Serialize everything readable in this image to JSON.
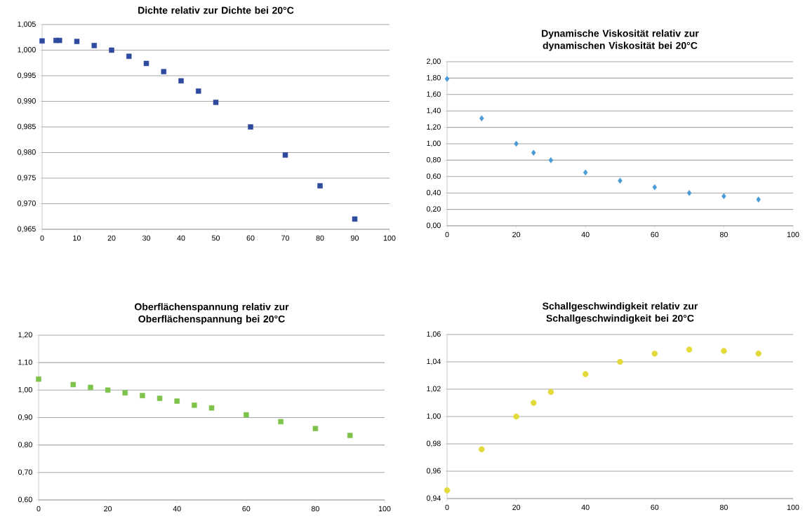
{
  "chart_data": [
    {
      "type": "scatter",
      "title": "Dichte relativ zur Dichte bei 20°C",
      "marker": "square",
      "grid": "y",
      "color": "#2e4a9e",
      "x": [
        0,
        4,
        5,
        10,
        15,
        20,
        25,
        30,
        35,
        40,
        45,
        50,
        60,
        70,
        80,
        90
      ],
      "values": [
        1.0018,
        1.0019,
        1.0019,
        1.0017,
        1.0009,
        1.0,
        0.9988,
        0.9974,
        0.9958,
        0.994,
        0.992,
        0.9898,
        0.985,
        0.9795,
        0.9735,
        0.967
      ],
      "xlim": [
        0,
        100
      ],
      "xticks": [
        0,
        10,
        20,
        30,
        40,
        50,
        60,
        70,
        80,
        90,
        100
      ],
      "ylim": [
        0.965,
        1.005
      ],
      "yticks": [
        {
          "value": 0.965,
          "label": "0,965"
        },
        {
          "value": 0.97,
          "label": "0,970"
        },
        {
          "value": 0.975,
          "label": "0,975"
        },
        {
          "value": 0.98,
          "label": "0,980"
        },
        {
          "value": 0.985,
          "label": "0,985"
        },
        {
          "value": 0.99,
          "label": "0,990"
        },
        {
          "value": 0.995,
          "label": "0,995"
        },
        {
          "value": 1.0,
          "label": "1,000"
        },
        {
          "value": 1.005,
          "label": "1,005"
        }
      ]
    },
    {
      "type": "scatter",
      "title": "Dynamische Viskosität relativ zur dynamischen Viskosität bei 20°C",
      "marker": "diamond",
      "grid": "y",
      "color": "#4a9ad6",
      "x": [
        0,
        10,
        20,
        25,
        30,
        40,
        50,
        60,
        70,
        80,
        90
      ],
      "values": [
        1.79,
        1.31,
        1.0,
        0.89,
        0.8,
        0.65,
        0.55,
        0.47,
        0.4,
        0.36,
        0.32
      ],
      "xlim": [
        0,
        100
      ],
      "xticks": [
        0,
        20,
        40,
        60,
        80,
        100
      ],
      "ylim": [
        0,
        2
      ],
      "yticks": [
        {
          "value": 0,
          "label": "0,00"
        },
        {
          "value": 0.2,
          "label": "0,20"
        },
        {
          "value": 0.4,
          "label": "0,40"
        },
        {
          "value": 0.6,
          "label": "0,60"
        },
        {
          "value": 0.8,
          "label": "0,80"
        },
        {
          "value": 1.0,
          "label": "1,00"
        },
        {
          "value": 1.2,
          "label": "1,20"
        },
        {
          "value": 1.4,
          "label": "1,40"
        },
        {
          "value": 1.6,
          "label": "1,60"
        },
        {
          "value": 1.8,
          "label": "1,80"
        },
        {
          "value": 2.0,
          "label": "2,00"
        }
      ]
    },
    {
      "type": "scatter",
      "title": "Oberflächenspannung relativ zur Oberflächenspannung bei 20°C",
      "marker": "square",
      "grid": "y",
      "color": "#7dc24a",
      "x": [
        0,
        10,
        15,
        20,
        25,
        30,
        35,
        40,
        45,
        50,
        60,
        70,
        80,
        90
      ],
      "values": [
        1.04,
        1.02,
        1.01,
        1.0,
        0.99,
        0.98,
        0.97,
        0.96,
        0.945,
        0.935,
        0.91,
        0.885,
        0.86,
        0.835
      ],
      "xlim": [
        0,
        100
      ],
      "xticks": [
        0,
        20,
        40,
        60,
        80,
        100
      ],
      "ylim": [
        0.6,
        1.2
      ],
      "yticks": [
        {
          "value": 0.6,
          "label": "0,60"
        },
        {
          "value": 0.7,
          "label": "0,70"
        },
        {
          "value": 0.8,
          "label": "0,80"
        },
        {
          "value": 0.9,
          "label": "0,90"
        },
        {
          "value": 1.0,
          "label": "1,00"
        },
        {
          "value": 1.1,
          "label": "1,10"
        },
        {
          "value": 1.2,
          "label": "1,20"
        }
      ]
    },
    {
      "type": "scatter",
      "title": "Schallgeschwindigkeit relativ zur Schallgeschwindigkeit bei 20°C",
      "marker": "circle",
      "grid": "y",
      "color": "#e2d93a",
      "x": [
        0,
        10,
        20,
        25,
        30,
        40,
        50,
        60,
        70,
        80,
        90
      ],
      "values": [
        0.946,
        0.976,
        1.0,
        1.01,
        1.018,
        1.031,
        1.04,
        1.046,
        1.049,
        1.048,
        1.046
      ],
      "xlim": [
        0,
        100
      ],
      "xticks": [
        0,
        20,
        40,
        60,
        80,
        100
      ],
      "ylim": [
        0.94,
        1.06
      ],
      "yticks": [
        {
          "value": 0.94,
          "label": "0,94"
        },
        {
          "value": 0.96,
          "label": "0,96"
        },
        {
          "value": 0.98,
          "label": "0,98"
        },
        {
          "value": 1.0,
          "label": "1,00"
        },
        {
          "value": 1.02,
          "label": "1,02"
        },
        {
          "value": 1.04,
          "label": "1,04"
        },
        {
          "value": 1.06,
          "label": "1,06"
        }
      ]
    }
  ]
}
